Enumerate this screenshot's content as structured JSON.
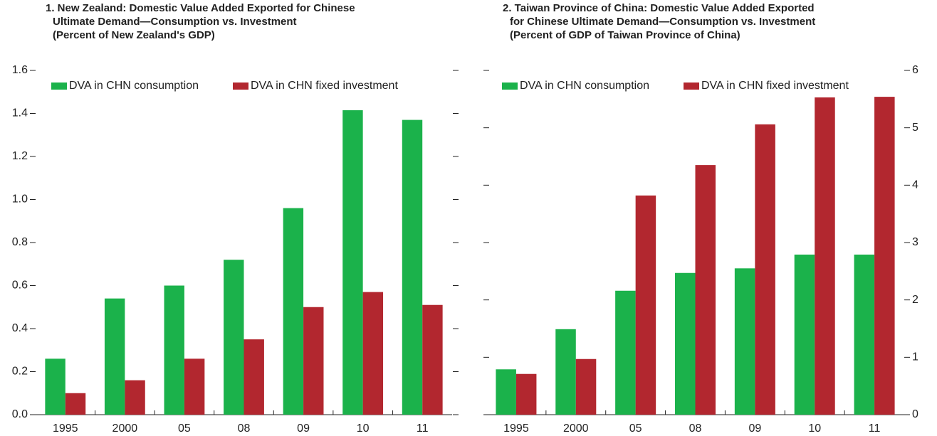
{
  "chart_data": [
    {
      "type": "bar",
      "title": [
        "1. New Zealand: Domestic Value Added Exported for Chinese",
        "Ultimate Demand—Consumption vs. Investment",
        "(Percent of New Zealand's GDP)"
      ],
      "categories": [
        "1995",
        "2000",
        "05",
        "08",
        "09",
        "10",
        "11"
      ],
      "series": [
        {
          "name": "DVA in CHN consumption",
          "color": "#1bb24b",
          "values": [
            0.26,
            0.54,
            0.6,
            0.72,
            0.96,
            1.415,
            1.37
          ]
        },
        {
          "name": "DVA in CHN fixed investment",
          "color": "#b2272f",
          "values": [
            0.1,
            0.16,
            0.26,
            0.35,
            0.5,
            0.57,
            0.51
          ]
        }
      ],
      "ylim": [
        0,
        1.6
      ],
      "yticks": [
        {
          "value": 0,
          "label": "0.0"
        },
        0.2,
        0.4,
        0.6,
        0.8,
        {
          "value": 1,
          "label": "1.0"
        },
        1.2,
        1.4,
        1.6
      ],
      "yaxis_position": "left",
      "legend": "upper left"
    },
    {
      "type": "bar",
      "title": [
        "2. Taiwan Province of China: Domestic Value Added Exported",
        "for Chinese Ultimate Demand—Consumption vs. Investment",
        "(Percent of GDP of Taiwan Province of China)"
      ],
      "categories": [
        "1995",
        "2000",
        "05",
        "08",
        "09",
        "10",
        "11"
      ],
      "series": [
        {
          "name": "DVA in CHN consumption",
          "color": "#1bb24b",
          "values": [
            0.79,
            1.49,
            2.16,
            2.47,
            2.55,
            2.79,
            2.79
          ]
        },
        {
          "name": "DVA in CHN fixed investment",
          "color": "#b2272f",
          "values": [
            0.71,
            0.97,
            3.82,
            4.35,
            5.06,
            5.53,
            5.54
          ]
        }
      ],
      "ylim": [
        0,
        6
      ],
      "yticks": [
        0,
        1,
        2,
        3,
        4,
        5,
        6
      ],
      "yaxis_position": "right",
      "legend": "upper left"
    }
  ]
}
